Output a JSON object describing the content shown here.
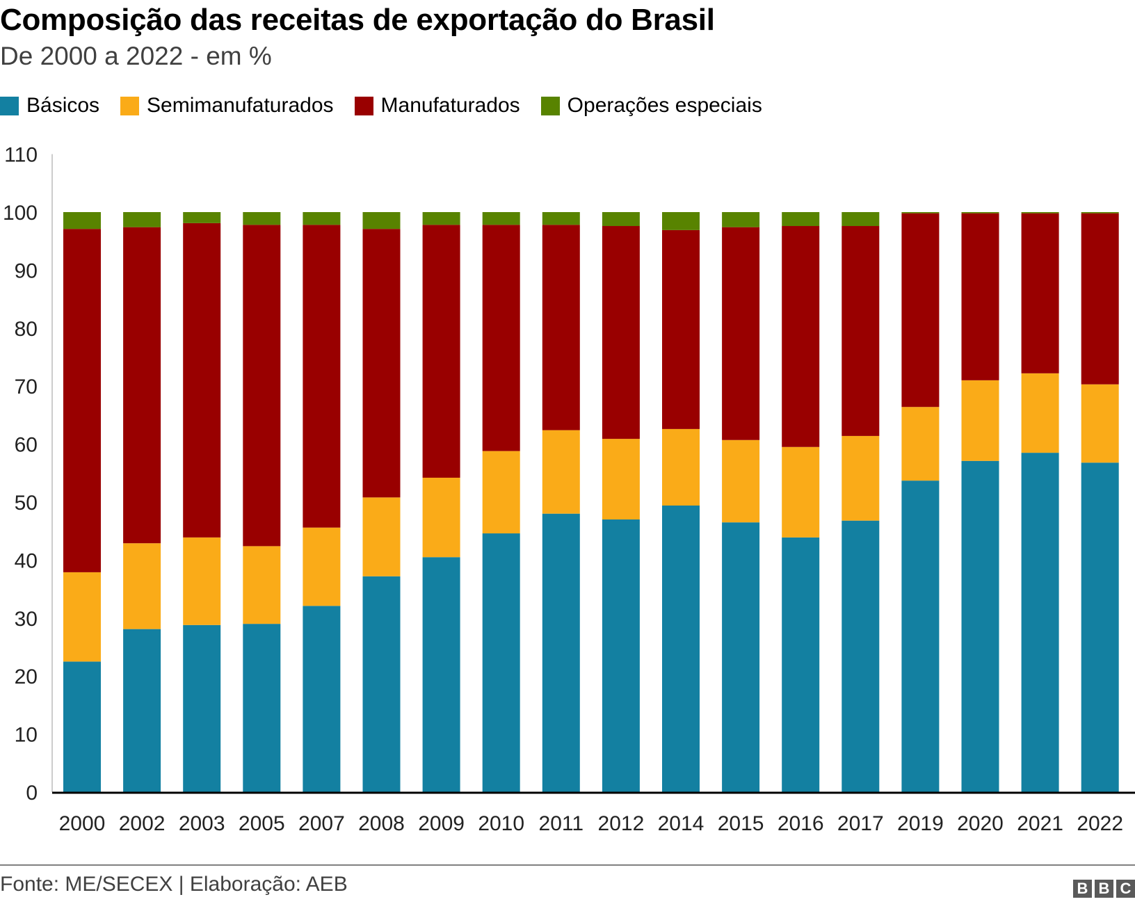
{
  "header": {
    "title": "Composição das receitas de exportação do Brasil",
    "subtitle": "De 2000 a 2022 - em %"
  },
  "footer": {
    "source": "Fonte: ME/SECEX | Elaboração: AEB",
    "logo_letters": [
      "B",
      "B",
      "C"
    ]
  },
  "chart_data": {
    "type": "bar",
    "stacked": true,
    "title": "Composição das receitas de exportação do Brasil",
    "subtitle": "De 2000 a 2022 - em %",
    "xlabel": "",
    "ylabel": "",
    "ylim": [
      0,
      110
    ],
    "yticks": [
      0,
      10,
      20,
      30,
      40,
      50,
      60,
      70,
      80,
      90,
      100,
      110
    ],
    "grid": false,
    "legend_position": "top-left",
    "categories": [
      "2000",
      "2002",
      "2003",
      "2005",
      "2007",
      "2008",
      "2009",
      "2010",
      "2011",
      "2012",
      "2014",
      "2015",
      "2016",
      "2017",
      "2019",
      "2020",
      "2021",
      "2022"
    ],
    "series": [
      {
        "name": "Básicos",
        "color": "#1380A1",
        "values": [
          22.5,
          28.1,
          28.8,
          29.0,
          32.1,
          37.2,
          40.5,
          44.6,
          48.0,
          47.0,
          49.4,
          46.5,
          43.9,
          46.8,
          53.7,
          57.1,
          58.5,
          56.8
        ]
      },
      {
        "name": "Semimanufaturados",
        "color": "#FAAB18",
        "values": [
          15.4,
          14.8,
          15.1,
          13.4,
          13.5,
          13.6,
          13.7,
          14.2,
          14.4,
          13.9,
          13.2,
          14.2,
          15.6,
          14.6,
          12.7,
          13.9,
          13.7,
          13.5
        ]
      },
      {
        "name": "Manufaturados",
        "color": "#990000",
        "values": [
          59.2,
          54.5,
          54.2,
          55.4,
          52.2,
          46.3,
          43.6,
          39.0,
          35.4,
          36.7,
          34.3,
          36.7,
          38.1,
          36.2,
          33.4,
          28.8,
          27.6,
          29.5
        ]
      },
      {
        "name": "Operações especiais",
        "color": "#588300",
        "values": [
          2.9,
          2.6,
          1.9,
          2.2,
          2.2,
          2.9,
          2.2,
          2.2,
          2.2,
          2.4,
          3.1,
          2.6,
          2.4,
          2.4,
          0.2,
          0.2,
          0.2,
          0.2
        ]
      }
    ]
  }
}
